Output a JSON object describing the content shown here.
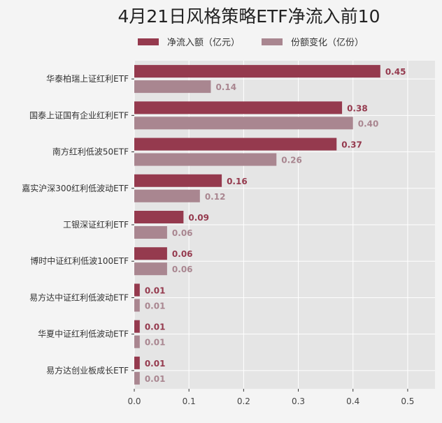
{
  "chart_data": {
    "type": "bar",
    "orientation": "horizontal",
    "title": "4月21日风格策略ETF净流入前10",
    "categories": [
      "华泰柏瑞上证红利ETF",
      "国泰上证国有企业红利ETF",
      "南方红利低波50ETF",
      "嘉实沪深300红利低波动ETF",
      "工银深证红利ETF",
      "博时中证红利低波100ETF",
      "易方达中证红利低波动ETF",
      "华夏中证红利低波动ETF",
      "易方达创业板成长ETF"
    ],
    "series": [
      {
        "name": "净流入额（亿元）",
        "color": "#953a4e",
        "values": [
          0.45,
          0.38,
          0.37,
          0.16,
          0.09,
          0.06,
          0.01,
          0.01,
          0.01
        ]
      },
      {
        "name": "份额变化（亿份）",
        "color": "#a98690",
        "values": [
          0.14,
          0.4,
          0.26,
          0.12,
          0.06,
          0.06,
          0.01,
          0.01,
          0.01
        ]
      }
    ],
    "xlim": [
      0,
      0.55
    ],
    "xticks": [
      "0.0",
      "0.1",
      "0.2",
      "0.3",
      "0.4",
      "0.5"
    ],
    "grid": true,
    "legend": "top",
    "xlabel": "",
    "ylabel": ""
  }
}
